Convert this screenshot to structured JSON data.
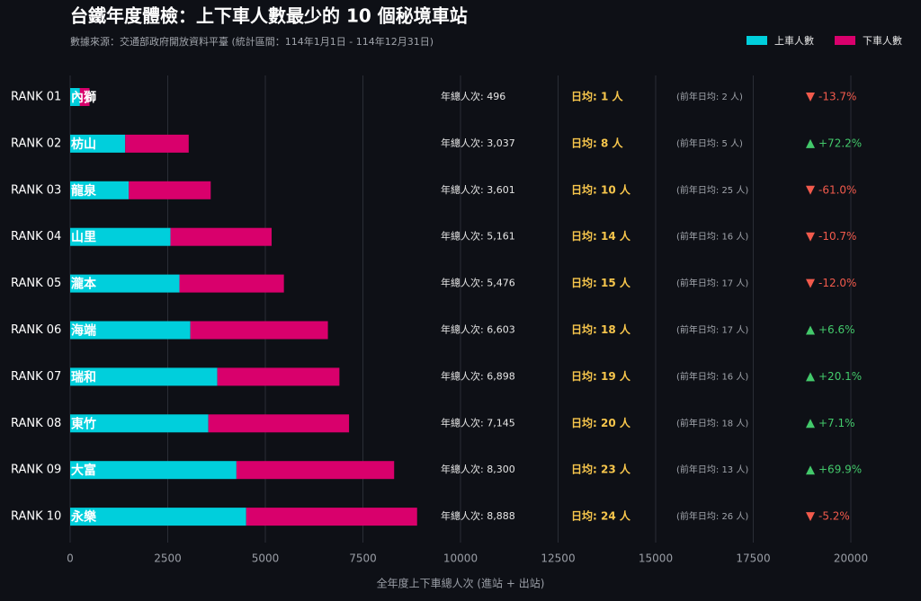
{
  "chart_data": {
    "type": "bar",
    "orientation": "horizontal",
    "stacked": true,
    "title": "台鐵年度體檢：上下車人數最少的 10 個秘境車站",
    "subtitle": "數據來源：交通部政府開放資料平臺 (統計區間：114年1月1日 - 114年12月31日)",
    "xlabel": "全年度上下車總人次 (進站 + 出站)",
    "categories": [
      "內獅",
      "枋山",
      "龍泉",
      "山里",
      "瀧本",
      "海端",
      "瑞和",
      "東竹",
      "大富",
      "永樂"
    ],
    "rank_labels": [
      "RANK 01",
      "RANK 02",
      "RANK 03",
      "RANK 04",
      "RANK 05",
      "RANK 06",
      "RANK 07",
      "RANK 08",
      "RANK 09",
      "RANK 10"
    ],
    "series": [
      {
        "name": "上車人數",
        "color": "#00cfdc",
        "values": [
          250,
          1410,
          1500,
          2570,
          2800,
          3080,
          3770,
          3540,
          4260,
          4510
        ]
      },
      {
        "name": "下車人數",
        "color": "#d9006c",
        "values": [
          246,
          1627,
          2101,
          2591,
          2676,
          3523,
          3128,
          3605,
          4040,
          4378
        ]
      }
    ],
    "total_labels": [
      "年總人次: 496",
      "年總人次: 3,037",
      "年總人次: 3,601",
      "年總人次: 5,161",
      "年總人次: 5,476",
      "年總人次: 6,603",
      "年總人次: 6,898",
      "年總人次: 7,145",
      "年總人次: 8,300",
      "年總人次: 8,888"
    ],
    "daily_labels": [
      "日均: 1 人",
      "日均: 8 人",
      "日均: 10 人",
      "日均: 14 人",
      "日均: 15 人",
      "日均: 18 人",
      "日均: 19 人",
      "日均: 20 人",
      "日均: 23 人",
      "日均: 24 人"
    ],
    "prev_labels": [
      "(前年日均: 2 人)",
      "(前年日均: 5 人)",
      "(前年日均: 25 人)",
      "(前年日均: 16 人)",
      "(前年日均: 17 人)",
      "(前年日均: 17 人)",
      "(前年日均: 16 人)",
      "(前年日均: 18 人)",
      "(前年日均: 13 人)",
      "(前年日均: 26 人)"
    ],
    "change": {
      "values": [
        -13.7,
        72.2,
        -61.0,
        -10.7,
        -12.0,
        6.6,
        20.1,
        7.1,
        69.9,
        -5.2
      ],
      "value_labels": [
        "-13.7%",
        "+72.2%",
        "-61.0%",
        "-10.7%",
        "-12.0%",
        "+6.6%",
        "+20.1%",
        "+7.1%",
        "+69.9%",
        "-5.2%"
      ],
      "up_color": "#43c96b",
      "down_color": "#f25a4c"
    },
    "xlim": [
      0,
      20000
    ],
    "xticks": [
      0,
      2500,
      5000,
      7500,
      10000,
      12500,
      15000,
      17500,
      20000
    ],
    "grid": true,
    "legend": "top-right"
  }
}
